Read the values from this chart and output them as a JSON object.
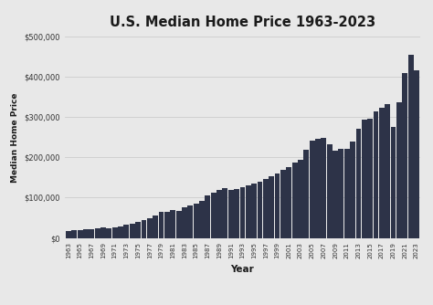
{
  "title": "U.S. Median Home Price 1963-2023",
  "xlabel": "Year",
  "ylabel": "Median Home Price",
  "bar_color": "#2d3348",
  "background_color": "#e8e8e8",
  "plot_background_color": "#e8e8e8",
  "ylim": [
    0,
    500000
  ],
  "yticks": [
    0,
    100000,
    200000,
    300000,
    400000,
    500000
  ],
  "years": [
    1963,
    1964,
    1965,
    1966,
    1967,
    1968,
    1969,
    1970,
    1971,
    1972,
    1973,
    1974,
    1975,
    1976,
    1977,
    1978,
    1979,
    1980,
    1981,
    1982,
    1983,
    1984,
    1985,
    1986,
    1987,
    1988,
    1989,
    1990,
    1991,
    1992,
    1993,
    1994,
    1995,
    1996,
    1997,
    1998,
    1999,
    2000,
    2001,
    2002,
    2003,
    2004,
    2005,
    2006,
    2007,
    2008,
    2009,
    2010,
    2011,
    2012,
    2013,
    2014,
    2015,
    2016,
    2017,
    2018,
    2019,
    2020,
    2021,
    2022,
    2023
  ],
  "values": [
    18000,
    19300,
    20000,
    21400,
    22700,
    24700,
    25600,
    23400,
    25200,
    27600,
    32500,
    35800,
    39300,
    44200,
    48800,
    55700,
    64500,
    64600,
    68900,
    67800,
    75300,
    79900,
    84300,
    92000,
    104500,
    112500,
    120000,
    122900,
    120000,
    121500,
    126500,
    130000,
    133900,
    140000,
    145900,
    152500,
    161000,
    169000,
    175200,
    187600,
    195000,
    220000,
    240900,
    246500,
    247900,
    232100,
    216700,
    221800,
    222200,
    240000,
    270200,
    294200,
    296400,
    315000,
    323100,
    331800,
    274600,
    336900,
    408800,
    454700,
    416100
  ]
}
